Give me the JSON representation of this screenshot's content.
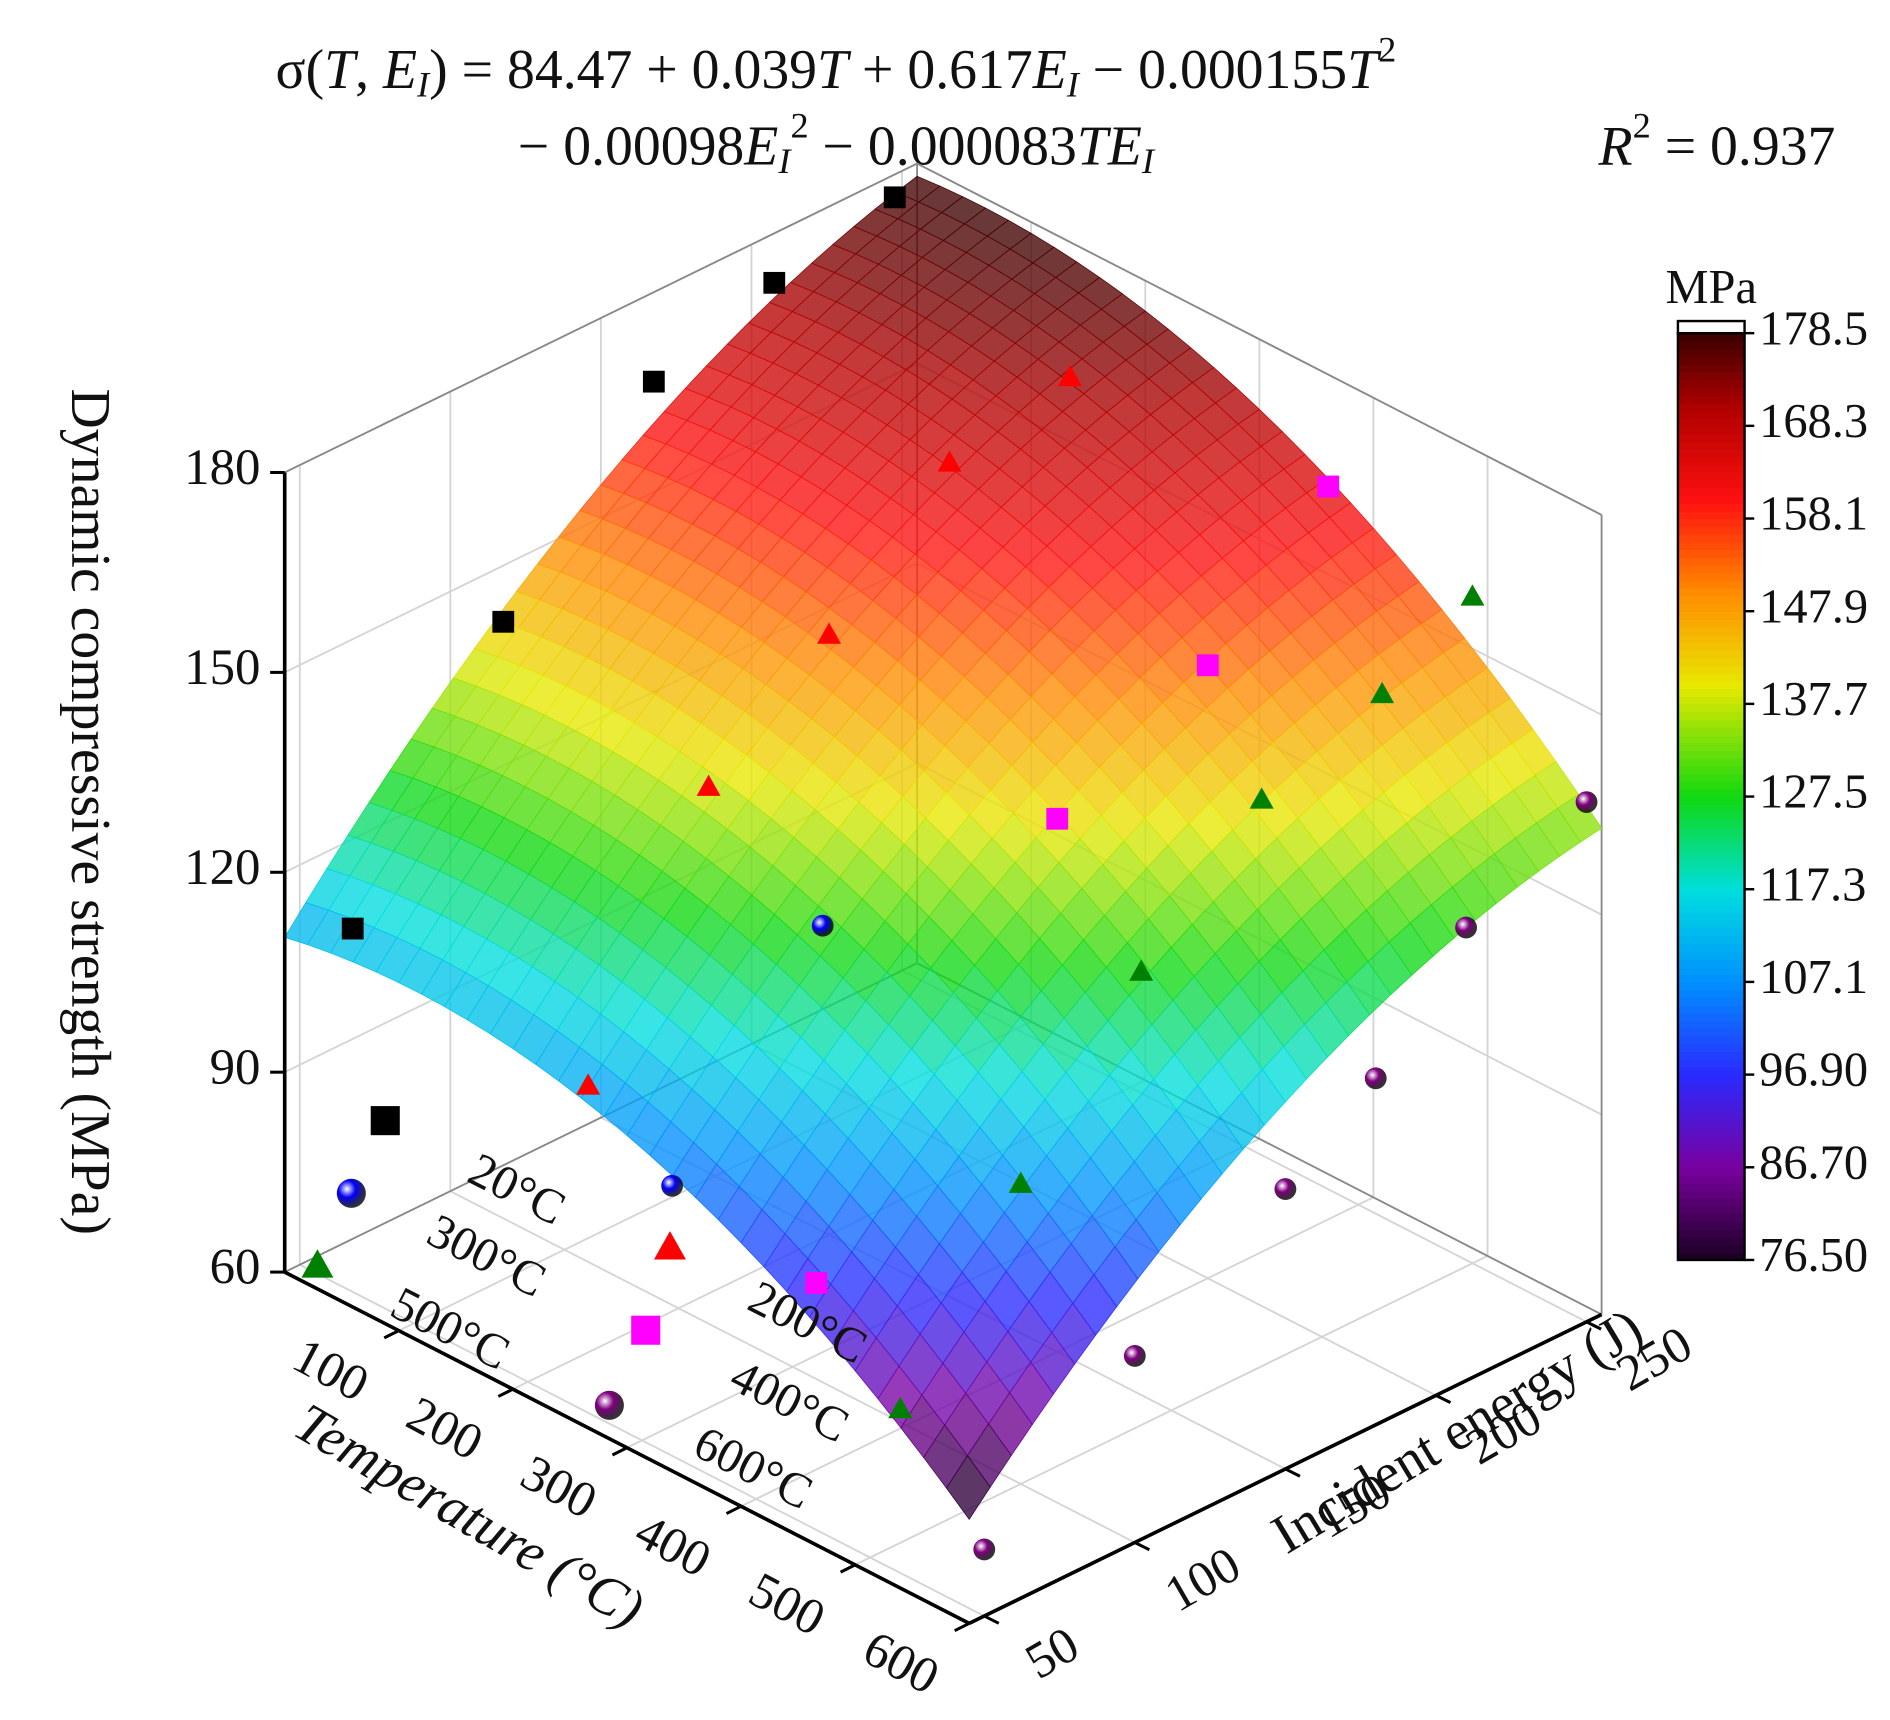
{
  "chart_data": {
    "type": "surface3d",
    "equation": {
      "line1": [
        {
          "text": "σ("
        },
        {
          "text": "T",
          "italic": true
        },
        {
          "text": ", "
        },
        {
          "text": "E",
          "italic": true
        },
        {
          "text": "I",
          "italic": true,
          "script": "sub"
        },
        {
          "text": ") = "
        },
        {
          "value": 84.47
        },
        {
          "text": " + "
        },
        {
          "value": 0.039
        },
        {
          "text": "T",
          "italic": true
        },
        {
          "text": " + "
        },
        {
          "value": 0.617
        },
        {
          "text": "E",
          "italic": true
        },
        {
          "text": "I",
          "italic": true,
          "script": "sub"
        },
        {
          "text": " − "
        },
        {
          "value": 0.000155
        },
        {
          "text": "T",
          "italic": true
        },
        {
          "text": "2",
          "script": "sup"
        }
      ],
      "line2": [
        {
          "text": "− "
        },
        {
          "value": 0.00098
        },
        {
          "text": "E",
          "italic": true
        },
        {
          "text": "I",
          "italic": true,
          "script": "sub"
        },
        {
          "text": "2",
          "script": "sup"
        },
        {
          "text": " − "
        },
        {
          "value": 8.3e-05
        },
        {
          "text": "TE",
          "italic": true
        },
        {
          "text": "I",
          "italic": true,
          "script": "sub"
        }
      ],
      "r2": [
        {
          "text": "R",
          "italic": true
        },
        {
          "text": "2",
          "script": "sup"
        },
        {
          "text": " = 0.937"
        }
      ]
    },
    "xlabel": "Temperature (°C)",
    "ylabel": "Incident energy (J)",
    "zlabel": "Dynamic compressive strength (MPa)",
    "xlim": [
      0,
      600
    ],
    "xticks": [
      100,
      200,
      300,
      400,
      500,
      600
    ],
    "ylim": [
      45,
      255
    ],
    "yticks": [
      50,
      100,
      150,
      200,
      250
    ],
    "zlim": [
      60,
      180
    ],
    "zticks": [
      60,
      90,
      120,
      150,
      180
    ],
    "grid": true,
    "colorbar": {
      "title": "MPa",
      "lim": [
        76.5,
        178.5
      ],
      "ticks": [
        {
          "value": 76.5,
          "label": "76.50"
        },
        {
          "value": 86.7,
          "label": "86.70"
        },
        {
          "value": 96.9,
          "label": "96.90"
        },
        107.1,
        117.3,
        127.5,
        137.7,
        147.9,
        158.1,
        168.3,
        178.5
      ]
    },
    "series": [
      {
        "name": "20°C",
        "color": "#000000",
        "marker": "square",
        "x": [
          20,
          20,
          20,
          20,
          20
        ],
        "y": [
          60,
          110,
          160,
          200,
          240
        ],
        "values": [
          110,
          145,
          170,
          176,
          180
        ]
      },
      {
        "name": "200°C",
        "color": "#ff0000",
        "marker": "triangle",
        "x": [
          200,
          200,
          200,
          200,
          200
        ],
        "y": [
          70,
          110,
          150,
          190,
          230
        ],
        "values": [
          100,
          136,
          150,
          167,
          171
        ]
      },
      {
        "name": "300°C",
        "color": "#0000ff",
        "marker": "sphere",
        "x": [
          300,
          300
        ],
        "y": [
          60,
          110
        ],
        "values": [
          96,
          124
        ]
      },
      {
        "name": "400°C",
        "color": "#ff00ff",
        "marker": "square",
        "x": [
          400,
          400,
          400,
          400
        ],
        "y": [
          70,
          150,
          200,
          240
        ],
        "values": [
          88,
          140,
          152,
          170
        ]
      },
      {
        "name": "500°C",
        "color": "#008000",
        "marker": "triangle",
        "x": [
          500,
          500,
          500,
          500,
          500,
          500
        ],
        "y": [
          60,
          100,
          140,
          180,
          220,
          250
        ],
        "values": [
          80,
          105,
          128,
          145,
          152,
          160
        ]
      },
      {
        "name": "600°C",
        "color": "#800080",
        "marker": "sphere",
        "x": [
          600,
          600,
          600,
          600,
          600,
          600
        ],
        "y": [
          50,
          100,
          150,
          180,
          210,
          250
        ],
        "values": [
          70,
          88,
          102,
          112,
          128,
          138
        ]
      }
    ]
  }
}
